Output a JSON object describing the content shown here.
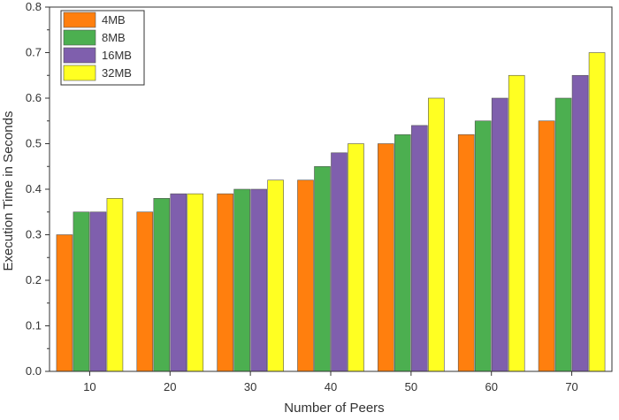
{
  "chart_data": {
    "type": "bar",
    "title": "",
    "xlabel": "Number of Peers",
    "ylabel": "Execution Time in Seconds",
    "categories": [
      "10",
      "20",
      "30",
      "40",
      "50",
      "60",
      "70"
    ],
    "ylim": [
      0,
      0.8
    ],
    "yticks": [
      "0.0",
      "0.1",
      "0.2",
      "0.3",
      "0.4",
      "0.5",
      "0.6",
      "0.7",
      "0.8"
    ],
    "grid": false,
    "legend_position": "top-left",
    "series": [
      {
        "name": "4MB",
        "color": "#ff7f0e",
        "values": [
          0.3,
          0.35,
          0.39,
          0.42,
          0.5,
          0.52,
          0.55
        ]
      },
      {
        "name": "8MB",
        "color": "#4caf50",
        "values": [
          0.35,
          0.38,
          0.4,
          0.45,
          0.52,
          0.55,
          0.6
        ]
      },
      {
        "name": "16MB",
        "color": "#7f5fad",
        "values": [
          0.35,
          0.39,
          0.4,
          0.48,
          0.54,
          0.6,
          0.65
        ]
      },
      {
        "name": "32MB",
        "color": "#ffff22",
        "values": [
          0.38,
          0.39,
          0.42,
          0.5,
          0.6,
          0.65,
          0.7
        ]
      }
    ]
  }
}
